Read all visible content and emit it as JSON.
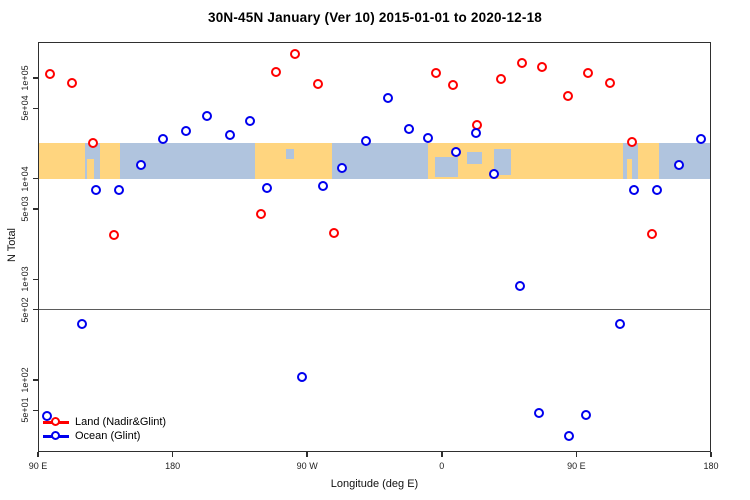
{
  "chart_data": {
    "type": "scatter",
    "title": "30N-45N January (Ver 10)   2015-01-01 to 2020-12-18",
    "xlabel": "Longitude (deg E)",
    "ylabel": "N Total",
    "x_axis": {
      "range_deg": [
        0,
        450
      ],
      "ticks_deg": [
        0,
        90,
        180,
        270,
        360,
        450
      ],
      "tick_labels": [
        "90 E",
        "180",
        "90 W",
        "0",
        "90 E",
        "180"
      ]
    },
    "y_axis": {
      "scale": "log",
      "range": [
        20,
        230000
      ],
      "ticks": [
        100000,
        50000,
        10000,
        5000,
        1000,
        500,
        100,
        50
      ],
      "tick_labels": [
        "1e+05",
        "5e+04",
        "1e+04",
        "5e+03",
        "1e+03",
        "5e+02",
        "1e+02",
        "5e+01"
      ]
    },
    "reference_line_value": 500,
    "map_band": {
      "value_top": 22500,
      "value_bottom": 10000,
      "land_color": "#FFD57F",
      "ocean_color": "#B0C4DE",
      "land_segments_deg": [
        [
          0,
          31.5
        ],
        [
          41.5,
          55
        ],
        [
          145.3,
          196.9
        ],
        [
          261.1,
          391.0
        ],
        [
          401.0,
          415.1
        ]
      ],
      "small_land_patches_deg": [
        {
          "range": [
            33.0,
            37.5
          ],
          "v0": 0.45,
          "v1": 1.0
        },
        {
          "range": [
            393.5,
            397.5
          ],
          "v0": 0.45,
          "v1": 1.0
        }
      ],
      "sea_patches_deg": [
        {
          "range": [
            265.5,
            281.0
          ],
          "v0": 0.4,
          "v1": 0.95
        },
        {
          "range": [
            287.0,
            297.0
          ],
          "v0": 0.25,
          "v1": 0.6
        },
        {
          "range": [
            305.0,
            316.0
          ],
          "v0": 0.15,
          "v1": 0.9
        },
        {
          "range": [
            166.0,
            171.5
          ],
          "v0": 0.15,
          "v1": 0.45
        }
      ]
    },
    "series": [
      {
        "name": "Land (Nadir&Glint)",
        "color": "#FF0000",
        "points": [
          {
            "x": 8.0,
            "n": 110000
          },
          {
            "x": 22.8,
            "n": 89000
          },
          {
            "x": 36.8,
            "n": 22500
          },
          {
            "x": 50.9,
            "n": 2750
          },
          {
            "x": 149.4,
            "n": 4450
          },
          {
            "x": 159.4,
            "n": 115000
          },
          {
            "x": 172.1,
            "n": 173000
          },
          {
            "x": 187.5,
            "n": 87000
          },
          {
            "x": 198.2,
            "n": 2900
          },
          {
            "x": 265.9,
            "n": 112000
          },
          {
            "x": 277.2,
            "n": 85000
          },
          {
            "x": 293.3,
            "n": 34000
          },
          {
            "x": 309.4,
            "n": 98000
          },
          {
            "x": 323.4,
            "n": 141000
          },
          {
            "x": 336.8,
            "n": 129000
          },
          {
            "x": 354.2,
            "n": 66000
          },
          {
            "x": 367.6,
            "n": 112000
          },
          {
            "x": 382.4,
            "n": 89000
          },
          {
            "x": 397.1,
            "n": 23000
          },
          {
            "x": 410.5,
            "n": 2800
          }
        ]
      },
      {
        "name": "Ocean (Glint)",
        "color": "#0000EE",
        "points": [
          {
            "x": 6.0,
            "n": 44
          },
          {
            "x": 29.5,
            "n": 360
          },
          {
            "x": 38.8,
            "n": 7700
          },
          {
            "x": 54.2,
            "n": 7700
          },
          {
            "x": 69.0,
            "n": 13700
          },
          {
            "x": 83.7,
            "n": 24800
          },
          {
            "x": 99.1,
            "n": 29700
          },
          {
            "x": 113.2,
            "n": 41900
          },
          {
            "x": 128.6,
            "n": 27100
          },
          {
            "x": 142.0,
            "n": 37400
          },
          {
            "x": 153.4,
            "n": 8100
          },
          {
            "x": 176.8,
            "n": 107
          },
          {
            "x": 190.8,
            "n": 8500
          },
          {
            "x": 203.6,
            "n": 12800
          },
          {
            "x": 219.0,
            "n": 23700
          },
          {
            "x": 233.7,
            "n": 63000
          },
          {
            "x": 247.8,
            "n": 31100
          },
          {
            "x": 260.5,
            "n": 25300
          },
          {
            "x": 279.2,
            "n": 18400
          },
          {
            "x": 292.6,
            "n": 28400
          },
          {
            "x": 304.7,
            "n": 11100
          },
          {
            "x": 322.1,
            "n": 860
          },
          {
            "x": 334.8,
            "n": 47
          },
          {
            "x": 354.9,
            "n": 28
          },
          {
            "x": 366.3,
            "n": 45
          },
          {
            "x": 389.1,
            "n": 360
          },
          {
            "x": 398.4,
            "n": 7700
          },
          {
            "x": 413.8,
            "n": 7700
          },
          {
            "x": 428.5,
            "n": 13700
          },
          {
            "x": 443.2,
            "n": 24800
          }
        ]
      }
    ],
    "legend": {
      "position": "bottom-left"
    }
  }
}
